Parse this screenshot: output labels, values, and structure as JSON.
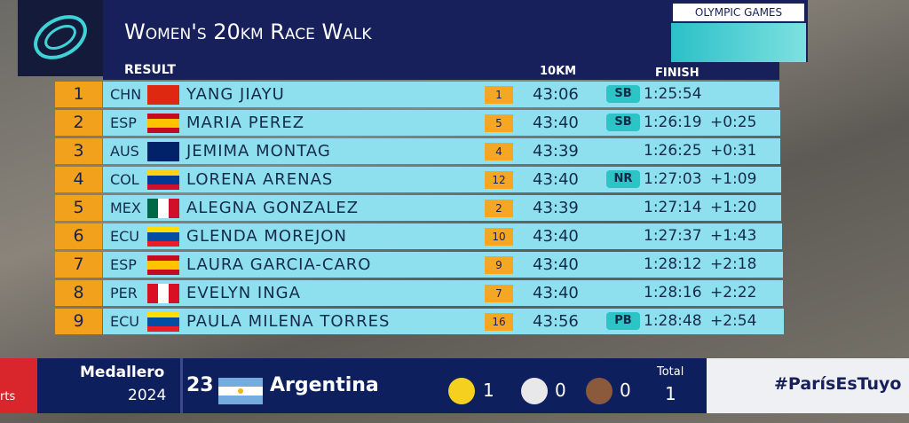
{
  "header": {
    "title": "Women's 20km Race Walk",
    "brand": "OLYMPIC GAMES",
    "section": "RESULT",
    "col_split": "10KM",
    "col_finish": "FINISH"
  },
  "rows": [
    {
      "rank": 1,
      "country": "CHN",
      "name": "YANG JIAYU",
      "split_rank": 1,
      "split": "43:06",
      "badge": "SB",
      "finish": "1:25:54"
    },
    {
      "rank": 2,
      "country": "ESP",
      "name": "MARIA PEREZ",
      "split_rank": 5,
      "split": "43:40",
      "badge": "SB",
      "finish": "1:26:19",
      "gap": "+0:25"
    },
    {
      "rank": 3,
      "country": "AUS",
      "name": "JEMIMA MONTAG",
      "split_rank": 4,
      "split": "43:39",
      "finish": "1:26:25",
      "gap": "+0:31"
    },
    {
      "rank": 4,
      "country": "COL",
      "name": "LORENA ARENAS",
      "split_rank": 12,
      "split": "43:40",
      "badge": "NR",
      "finish": "1:27:03",
      "gap": "+1:09"
    },
    {
      "rank": 5,
      "country": "MEX",
      "name": "ALEGNA GONZALEZ",
      "split_rank": 2,
      "split": "43:39",
      "finish": "1:27:14",
      "gap": "+1:20"
    },
    {
      "rank": 6,
      "country": "ECU",
      "name": "GLENDA MOREJON",
      "split_rank": 10,
      "split": "43:40",
      "finish": "1:27:37",
      "gap": "+1:43"
    },
    {
      "rank": 7,
      "country": "ESP",
      "name": "LAURA GARCIA-CARO",
      "split_rank": 9,
      "split": "43:40",
      "finish": "1:28:12",
      "gap": "+2:18"
    },
    {
      "rank": 8,
      "country": "PER",
      "name": "EVELYN INGA",
      "split_rank": 7,
      "split": "43:40",
      "finish": "1:28:16",
      "gap": "+2:22"
    },
    {
      "rank": 9,
      "country": "ECU",
      "name": "PAULA MILENA TORRES",
      "split_rank": 16,
      "split": "43:56",
      "badge": "PB",
      "finish": "1:28:48",
      "gap": "+2:54"
    }
  ],
  "footer": {
    "channel": "rts",
    "label": "Medallero",
    "year": "2024",
    "position": 23,
    "nation": "Argentina",
    "gold": 1,
    "silver": 0,
    "bronze": 0,
    "total_label": "Total",
    "total": 1,
    "hashtag": "#ParísEsTuyo"
  }
}
